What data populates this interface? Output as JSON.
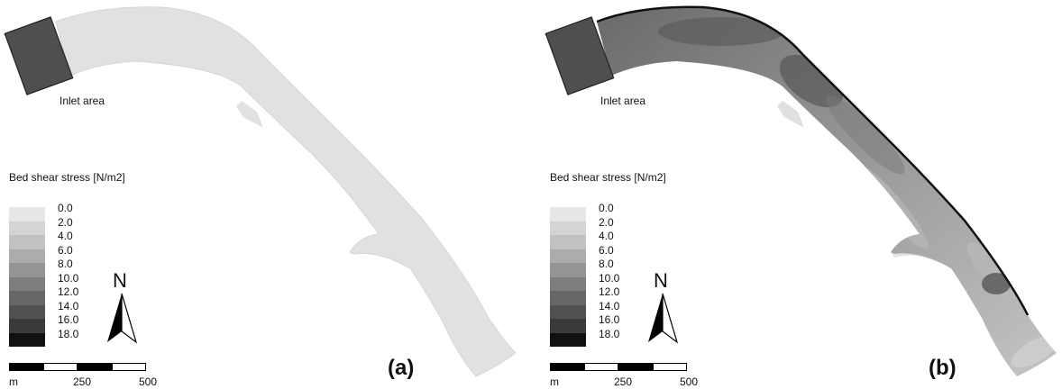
{
  "panels": [
    {
      "id": "a",
      "panel_label": "(a)",
      "inlet_label": "Inlet area",
      "legend_title": "Bed shear stress [N/m2]",
      "north_label": "N",
      "scale_labels": [
        "m",
        "250",
        "500"
      ]
    },
    {
      "id": "b",
      "panel_label": "(b)",
      "inlet_label": "Inlet area",
      "legend_title": "Bed shear stress [N/m2]",
      "north_label": "N",
      "scale_labels": [
        "m",
        "250",
        "500"
      ]
    }
  ],
  "legend": {
    "values": [
      "0.0",
      "2.0",
      "4.0",
      "6.0",
      "8.0",
      "10.0",
      "12.0",
      "14.0",
      "16.0",
      "18.0"
    ],
    "colors": [
      "#e6e6e6",
      "#d4d4d4",
      "#c2c2c2",
      "#acacac",
      "#959595",
      "#7e7e7e",
      "#676767",
      "#515151",
      "#3a3a3a",
      "#111111"
    ]
  },
  "colors": {
    "channel_uniform": "#e1e1e1",
    "inlet_box": "#4f4f4f"
  }
}
